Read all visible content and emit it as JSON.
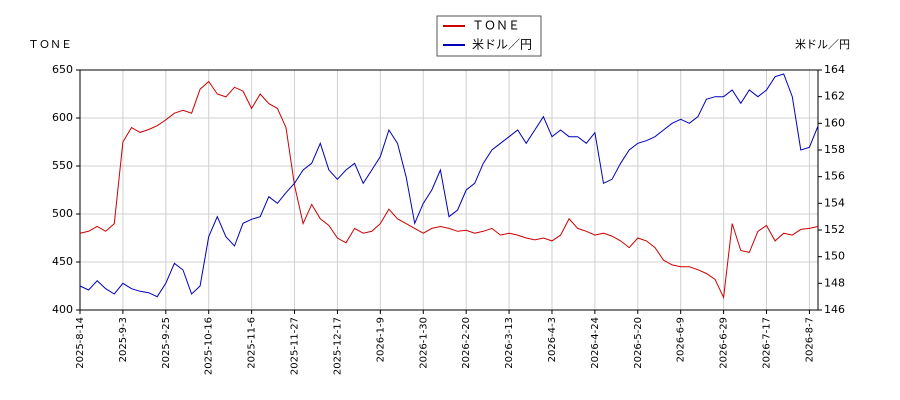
{
  "chart_data": {
    "type": "line",
    "y_label": "ＴＯＮＥ",
    "y2_label": "米ドル／円",
    "categories": [
      "2025-8-14",
      null,
      null,
      null,
      null,
      "2025-9-3",
      null,
      null,
      null,
      null,
      "2025-9-25",
      null,
      null,
      null,
      null,
      "2025-10-16",
      null,
      null,
      null,
      null,
      "2025-11-6",
      null,
      null,
      null,
      null,
      "2025-11-27",
      null,
      null,
      null,
      null,
      "2025-12-17",
      null,
      null,
      null,
      null,
      "2026-1-9",
      null,
      null,
      null,
      null,
      "2026-1-30",
      null,
      null,
      null,
      null,
      "2026-2-20",
      null,
      null,
      null,
      null,
      "2026-3-13",
      null,
      null,
      null,
      null,
      "2026-4-3",
      null,
      null,
      null,
      null,
      "2026-4-24",
      null,
      null,
      null,
      null,
      "2026-5-20",
      null,
      null,
      null,
      null,
      "2026-6-9",
      null,
      null,
      null,
      null,
      "2026-6-29",
      null,
      null,
      null,
      null,
      "2026-7-17",
      null,
      null,
      null,
      null,
      "2026-8-7",
      null
    ],
    "series": [
      {
        "name": "ＴＯＮＥ",
        "color": "#cc0000",
        "axis": "y",
        "values": [
          480,
          482,
          487,
          482,
          490,
          575,
          590,
          585,
          588,
          592,
          598,
          605,
          608,
          605,
          630,
          638,
          625,
          622,
          632,
          628,
          610,
          625,
          615,
          610,
          590,
          530,
          490,
          510,
          495,
          488,
          475,
          470,
          485,
          480,
          482,
          490,
          505,
          495,
          490,
          485,
          480,
          485,
          487,
          485,
          482,
          483,
          480,
          482,
          485,
          478,
          480,
          478,
          475,
          473,
          475,
          472,
          478,
          495,
          485,
          482,
          478,
          480,
          477,
          472,
          465,
          475,
          472,
          465,
          452,
          447,
          445,
          445,
          442,
          438,
          432,
          413,
          490,
          462,
          460,
          482,
          488,
          472,
          480,
          478,
          484,
          485,
          487
        ]
      },
      {
        "name": "米ドル／円",
        "color": "#0000bb",
        "axis": "y2",
        "values": [
          147.8,
          147.5,
          148.2,
          147.6,
          147.2,
          148.0,
          147.6,
          147.4,
          147.3,
          147.0,
          148.0,
          149.5,
          149.0,
          147.2,
          147.8,
          151.5,
          153.0,
          151.5,
          150.8,
          152.5,
          152.8,
          153.0,
          154.5,
          154.0,
          154.8,
          155.5,
          156.5,
          157.0,
          158.5,
          156.5,
          155.8,
          156.5,
          157.0,
          155.5,
          156.5,
          157.5,
          159.5,
          158.5,
          156.0,
          152.5,
          154.0,
          155.0,
          156.5,
          153.0,
          153.5,
          155.0,
          155.5,
          157.0,
          158.0,
          158.5,
          159.0,
          159.5,
          158.5,
          159.5,
          160.5,
          159.0,
          159.5,
          159.0,
          159.0,
          158.5,
          159.3,
          155.5,
          155.8,
          157.0,
          158.0,
          158.5,
          158.7,
          159.0,
          159.5,
          160.0,
          160.3,
          160.0,
          160.5,
          161.8,
          162.0,
          162.0,
          162.5,
          161.5,
          162.5,
          162.0,
          162.5,
          163.5,
          163.7,
          162.0,
          158.0,
          158.2,
          159.8
        ]
      }
    ],
    "ylim": [
      400,
      650
    ],
    "yticks": [
      400,
      450,
      500,
      550,
      600,
      650
    ],
    "y2lim": [
      146,
      164
    ],
    "y2ticks": [
      146,
      148,
      150,
      152,
      154,
      156,
      158,
      160,
      162,
      164
    ],
    "grid": true
  }
}
